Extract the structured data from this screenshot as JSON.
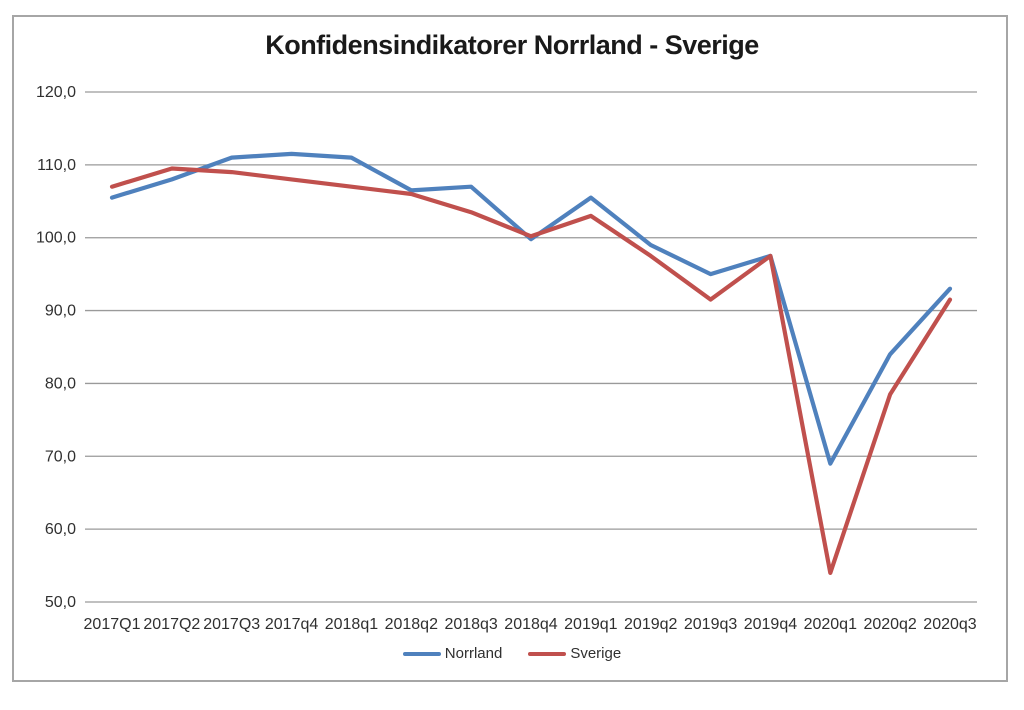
{
  "title": "Konfidensindikatorer Norrland - Sverige",
  "colors": {
    "norrland": "#4F81BD",
    "sverige": "#C0504D",
    "gridline": "#9a9a9a",
    "frame_border": "#a6a6a6",
    "tick_text": "#303030",
    "title_text": "#1a1a1a"
  },
  "legend": {
    "items": [
      {
        "label": "Norrland",
        "color": "#4F81BD"
      },
      {
        "label": "Sverige",
        "color": "#C0504D"
      }
    ],
    "position": "bottom"
  },
  "chart_data": {
    "type": "line",
    "title": "Konfidensindikatorer Norrland - Sverige",
    "categories": [
      "2017Q1",
      "2017Q2",
      "2017Q3",
      "2017q4",
      "2018q1",
      "2018q2",
      "2018q3",
      "2018q4",
      "2019q1",
      "2019q2",
      "2019q3",
      "2019q4",
      "2020q1",
      "2020q2",
      "2020q3"
    ],
    "series": [
      {
        "name": "Norrland",
        "color": "#4F81BD",
        "values": [
          105.5,
          108.0,
          111.0,
          111.5,
          111.0,
          106.5,
          107.0,
          99.8,
          105.5,
          99.0,
          95.0,
          97.5,
          69.0,
          84.0,
          93.0
        ]
      },
      {
        "name": "Sverige",
        "color": "#C0504D",
        "values": [
          107.0,
          109.5,
          109.0,
          108.0,
          107.0,
          106.0,
          103.5,
          100.2,
          103.0,
          97.5,
          91.5,
          97.5,
          54.0,
          78.5,
          91.5
        ]
      }
    ],
    "xlabel": "",
    "ylabel": "",
    "ylim": [
      50,
      120
    ],
    "ytick_step": 10,
    "ytick_labels": [
      "120,0",
      "110,0",
      "100,0",
      "90,0",
      "80,0",
      "70,0",
      "60,0",
      "50,0"
    ],
    "grid": true,
    "legend_position": "bottom"
  }
}
